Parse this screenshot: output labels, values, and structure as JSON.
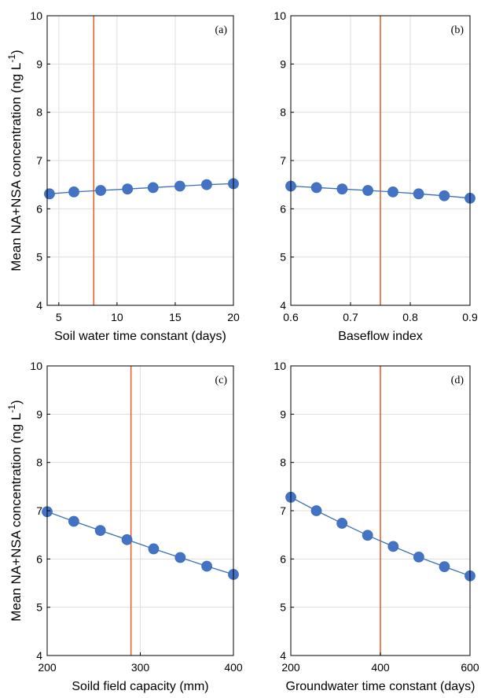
{
  "colors": {
    "series": "#4472C4",
    "series_line": "#3A6FB8",
    "reference": "#E8642C",
    "grid": "#DDDDDD",
    "axis": "#000000"
  },
  "ylabel_main": "Mean NA+NSA concentration (ng L",
  "ylabel_exp": "-1",
  "ylabel_close": ")",
  "chart_data": [
    {
      "type": "line",
      "panel": "(a)",
      "xlabel": "Soil water time constant (days)",
      "xlim": [
        4,
        20
      ],
      "xticks": [
        5,
        10,
        15,
        20
      ],
      "ylim": [
        4,
        10
      ],
      "yticks": [
        4,
        5,
        6,
        7,
        8,
        9,
        10
      ],
      "reference_x": 8,
      "x": [
        4.2,
        6.3,
        8.6,
        10.9,
        13.1,
        15.4,
        17.7,
        20
      ],
      "y": [
        6.31,
        6.35,
        6.38,
        6.41,
        6.44,
        6.47,
        6.5,
        6.52
      ]
    },
    {
      "type": "line",
      "panel": "(b)",
      "xlabel": "Baseflow index",
      "xlim": [
        0.6,
        0.9
      ],
      "xticks": [
        0.6,
        0.7,
        0.8,
        0.9
      ],
      "ylim": [
        4,
        10
      ],
      "yticks": [
        4,
        5,
        6,
        7,
        8,
        9,
        10
      ],
      "reference_x": 0.75,
      "x": [
        0.6,
        0.643,
        0.686,
        0.729,
        0.771,
        0.814,
        0.857,
        0.9
      ],
      "y": [
        6.47,
        6.44,
        6.41,
        6.38,
        6.35,
        6.31,
        6.27,
        6.22
      ]
    },
    {
      "type": "line",
      "panel": "(c)",
      "xlabel": "Soild field capacity (mm)",
      "xlim": [
        200,
        400
      ],
      "xticks": [
        200,
        300,
        400
      ],
      "ylim": [
        4,
        10
      ],
      "yticks": [
        4,
        5,
        6,
        7,
        8,
        9,
        10
      ],
      "reference_x": 290,
      "x": [
        200,
        228.6,
        257.1,
        285.7,
        314.3,
        342.9,
        371.4,
        400
      ],
      "y": [
        6.98,
        6.78,
        6.59,
        6.4,
        6.21,
        6.03,
        5.85,
        5.68
      ]
    },
    {
      "type": "line",
      "panel": "(d)",
      "xlabel": "Groundwater time constant (days)",
      "xlim": [
        200,
        600
      ],
      "xticks": [
        200,
        400,
        600
      ],
      "ylim": [
        4,
        10
      ],
      "yticks": [
        4,
        5,
        6,
        7,
        8,
        9,
        10
      ],
      "reference_x": 400,
      "x": [
        200,
        257.1,
        314.3,
        371.4,
        428.6,
        485.7,
        542.9,
        600
      ],
      "y": [
        7.28,
        7.0,
        6.74,
        6.49,
        6.26,
        6.04,
        5.84,
        5.65
      ]
    }
  ]
}
